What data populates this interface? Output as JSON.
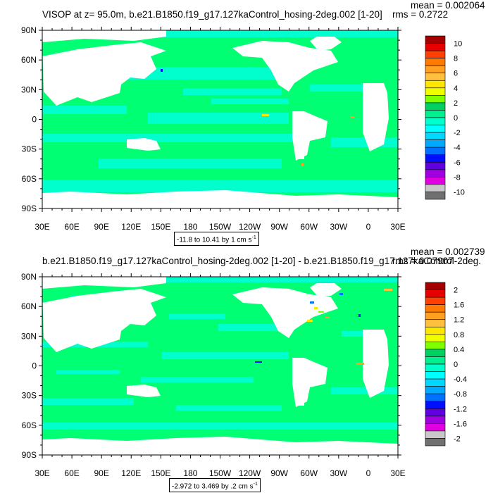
{
  "colors": {
    "ocean_main": "#00ff73",
    "ocean_cyan": "#00ffcc",
    "ocean_mid": "#00e6a0",
    "land": "#ffffff",
    "frame": "#000000"
  },
  "panels": [
    {
      "title": "VISOP at z=  95.0m, b.e21.B1850.f19_g17.127kaControl_hosing-2deg.002 [1-20]",
      "mean_text": "mean = 0.002064",
      "rms_text": "rms = 0.2722",
      "range_text": "-11.8 to 10.41 by 1 cm s",
      "range_unit_exp": "-1",
      "lat_labels": [
        "90N",
        "60N",
        "30N",
        "0",
        "30S",
        "60S",
        "90S"
      ],
      "lon_labels": [
        "30E",
        "60E",
        "90E",
        "120E",
        "150E",
        "180",
        "150W",
        "120W",
        "90W",
        "60W",
        "30W",
        "0",
        "30E"
      ],
      "colorbar": {
        "labels": [
          "10",
          "8",
          "6",
          "4",
          "2",
          "0",
          "-2",
          "-4",
          "-6",
          "-8",
          "-10"
        ],
        "colors": [
          "#a50000",
          "#e60000",
          "#ff4000",
          "#ff7a00",
          "#ffa020",
          "#ffc040",
          "#ffe600",
          "#f0ff00",
          "#80ff00",
          "#00d060",
          "#00f090",
          "#00ffcc",
          "#00ffff",
          "#00d8ff",
          "#00a8ff",
          "#0070ff",
          "#0010ff",
          "#6000e0",
          "#a000e0",
          "#e000e0",
          "#c8c8c8",
          "#707070"
        ]
      }
    },
    {
      "title": "b.e21.B1850.f19_g17.127kaControl_hosing-2deg.002 [1-20] - b.e21.B1850.f19_g17.127kaControl-2deg.",
      "mean_text": "mean = 0.002739",
      "rms_text": "rms = 0.07907",
      "range_text": "-2.972 to 3.469 by .2 cm s",
      "range_unit_exp": "-1",
      "lat_labels": [
        "90N",
        "60N",
        "30N",
        "0",
        "30S",
        "60S",
        "90S"
      ],
      "lon_labels": [
        "30E",
        "60E",
        "90E",
        "120E",
        "150E",
        "180",
        "150W",
        "120W",
        "90W",
        "60W",
        "30W",
        "0",
        "30E"
      ],
      "colorbar": {
        "labels": [
          "2",
          "1.6",
          "1.2",
          "0.8",
          "0.4",
          "0",
          "-0.4",
          "-0.8",
          "-1.2",
          "-1.6",
          "-2"
        ],
        "colors": [
          "#a50000",
          "#e60000",
          "#ff4000",
          "#ff7a00",
          "#ffa020",
          "#ffc040",
          "#ffe600",
          "#f0ff00",
          "#80ff00",
          "#00d060",
          "#00f090",
          "#00ffcc",
          "#00ffff",
          "#00d8ff",
          "#00a8ff",
          "#0070ff",
          "#0010ff",
          "#6000e0",
          "#a000e0",
          "#e000e0",
          "#c8c8c8",
          "#707070"
        ]
      }
    }
  ]
}
